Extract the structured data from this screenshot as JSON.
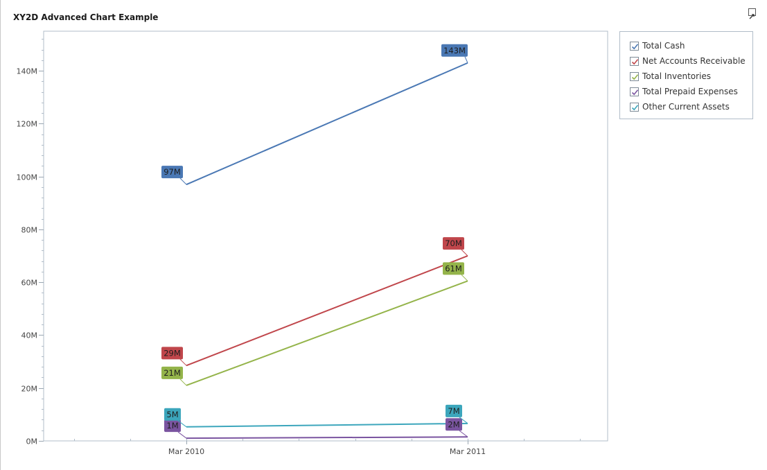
{
  "title": "XY2D Advanced Chart Example",
  "expand_icon": "expand-arrow-icon",
  "chart_data": {
    "type": "line",
    "title": "XY2D Advanced Chart Example",
    "xlabel": "",
    "ylabel": "",
    "categories": [
      "Mar 2010",
      "Mar 2011"
    ],
    "ylim": [
      0,
      155000000
    ],
    "yticks": [
      0,
      20000000,
      40000000,
      60000000,
      80000000,
      100000000,
      120000000,
      140000000
    ],
    "ytick_labels": [
      "0M",
      "20M",
      "40M",
      "60M",
      "80M",
      "100M",
      "120M",
      "140M"
    ],
    "grid": false,
    "legend_position": "right",
    "series": [
      {
        "name": "Total Cash",
        "color": "#4a78b4",
        "values": [
          97000000,
          143000000
        ],
        "labels": [
          "97M",
          "143M"
        ]
      },
      {
        "name": "Net Accounts Receivable",
        "color": "#c0464b",
        "values": [
          28500000,
          70000000
        ],
        "labels": [
          "29M",
          "70M"
        ]
      },
      {
        "name": "Total Inventories",
        "color": "#94b44a",
        "values": [
          21000000,
          60500000
        ],
        "labels": [
          "21M",
          "61M"
        ]
      },
      {
        "name": "Total Prepaid Expenses",
        "color": "#7a54a0",
        "values": [
          1000000,
          1500000
        ],
        "labels": [
          "1M",
          "2M"
        ]
      },
      {
        "name": "Other Current Assets",
        "color": "#3ca6bc",
        "values": [
          5300000,
          6600000
        ],
        "labels": [
          "5M",
          "7M"
        ]
      }
    ]
  },
  "legend": {
    "items": [
      {
        "label": "Total Cash",
        "checked": true
      },
      {
        "label": "Net Accounts Receivable",
        "checked": true
      },
      {
        "label": "Total Inventories",
        "checked": true
      },
      {
        "label": "Total Prepaid Expenses",
        "checked": true
      },
      {
        "label": "Other Current Assets",
        "checked": true
      }
    ]
  }
}
